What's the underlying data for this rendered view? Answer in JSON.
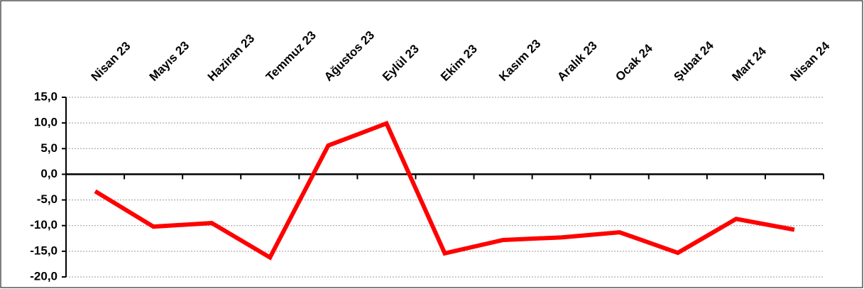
{
  "chart_data": {
    "type": "line",
    "categories": [
      "Nisan 23",
      "Mayıs 23",
      "Haziran 23",
      "Temmuz 23",
      "Ağustos 23",
      "Eylül 23",
      "Ekim 23",
      "Kasım 23",
      "Aralık 23",
      "Ocak 24",
      "Şubat 24",
      "Mart 24",
      "Nisan 24"
    ],
    "series": [
      {
        "color": "#ff0000",
        "values": [
          -3.3,
          -10.2,
          -9.5,
          -16.2,
          5.6,
          9.9,
          -15.4,
          -12.8,
          -12.3,
          -11.3,
          -15.3,
          -8.7,
          -10.8
        ]
      }
    ],
    "ylim": [
      -20,
      15
    ],
    "yticks": [
      {
        "value": -20,
        "label": "-20,0"
      },
      {
        "value": -15,
        "label": "-15,0"
      },
      {
        "value": -10,
        "label": "-10,0"
      },
      {
        "value": -5,
        "label": "-5,0"
      },
      {
        "value": 0,
        "label": "0,0"
      },
      {
        "value": 5,
        "label": "5,0"
      },
      {
        "value": 10,
        "label": "10,0"
      },
      {
        "value": 15,
        "label": "15,0"
      }
    ],
    "grid": true
  }
}
